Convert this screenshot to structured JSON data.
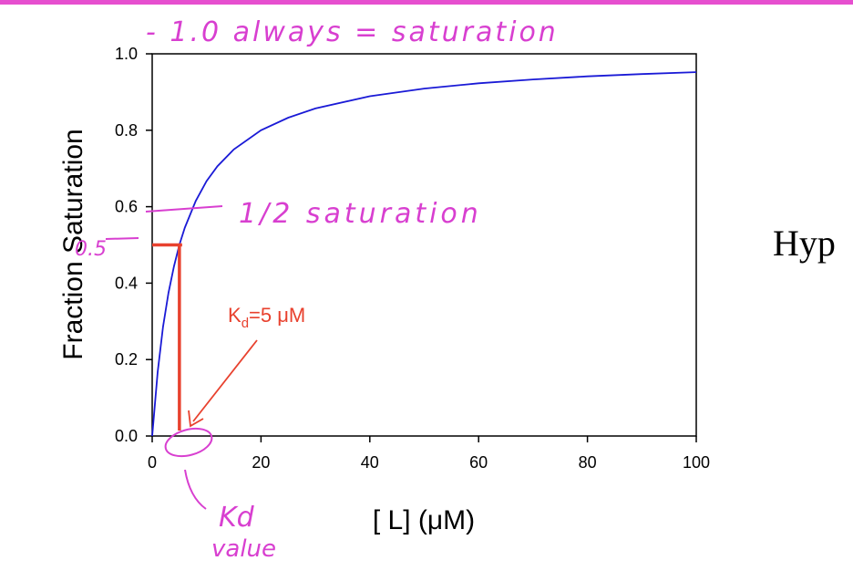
{
  "chart_data": {
    "type": "line",
    "xlabel": "[ L] (μM)",
    "ylabel": "Fraction Saturation",
    "xlim": [
      0,
      100
    ],
    "ylim": [
      0,
      1.0
    ],
    "x_ticks": [
      "0",
      "20",
      "40",
      "60",
      "80",
      "100"
    ],
    "y_ticks": [
      "0.0",
      "0.2",
      "0.4",
      "0.6",
      "0.8",
      "1.0"
    ],
    "grid": false,
    "series": [
      {
        "color": "#1a1ad6",
        "x": [
          0,
          1,
          2,
          3,
          4,
          5,
          6,
          8,
          10,
          12,
          15,
          20,
          25,
          30,
          40,
          50,
          60,
          70,
          80,
          90,
          100
        ],
        "y": [
          0.0,
          0.167,
          0.286,
          0.375,
          0.444,
          0.5,
          0.545,
          0.615,
          0.667,
          0.706,
          0.75,
          0.8,
          0.833,
          0.857,
          0.889,
          0.909,
          0.923,
          0.933,
          0.941,
          0.947,
          0.952
        ]
      }
    ],
    "annotations": {
      "kd_label_main": "K",
      "kd_label_sub": "d",
      "kd_label_rest": "=5 μM",
      "kd_x": 5,
      "half_y": 0.5
    }
  },
  "handwriting": {
    "top_note": "- 1.0 always = saturation",
    "half_note": "1/2 saturation",
    "half_value": "0.5",
    "kd_word": "Kd",
    "value_word": "value"
  },
  "side_text": "Hyp",
  "colors": {
    "curve": "#1a1ad6",
    "annotation_red": "#e8412e",
    "handwriting": "#d83fd0",
    "top_bar": "#e64fcf"
  }
}
